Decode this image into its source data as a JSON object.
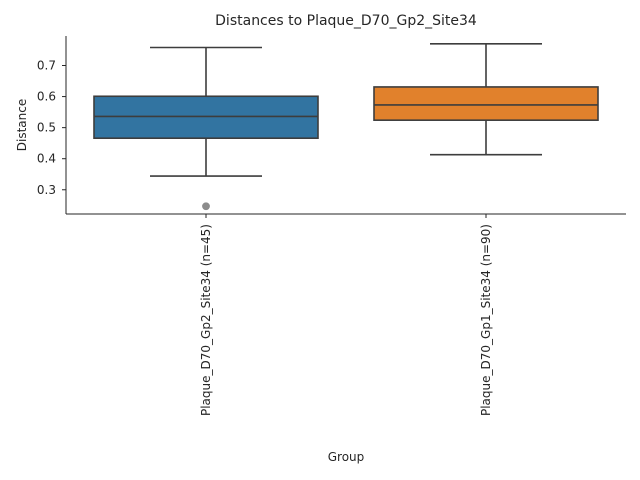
{
  "chart_data": {
    "type": "box",
    "title": "Distances to Plaque_D70_Gp2_Site34",
    "xlabel": "Group",
    "ylabel": "Distance",
    "ylim": [
      0.222,
      0.795
    ],
    "yticks": [
      0.3,
      0.4,
      0.5,
      0.6,
      0.7
    ],
    "yticklabels": [
      "0.3",
      "0.4",
      "0.5",
      "0.6",
      "0.7"
    ],
    "grid": false,
    "categories": [
      "Plaque_D70_Gp2_Site34 (n=45)",
      "Plaque_D70_Gp1_Site34 (n=90)"
    ],
    "boxes": [
      {
        "label": "Plaque_D70_Gp2_Site34 (n=45)",
        "whisker_low": 0.344,
        "q1": 0.466,
        "median": 0.536,
        "q3": 0.601,
        "whisker_high": 0.758,
        "outliers": [
          0.247
        ],
        "color": "#3274a1"
      },
      {
        "label": "Plaque_D70_Gp1_Site34 (n=90)",
        "whisker_low": 0.413,
        "q1": 0.524,
        "median": 0.573,
        "q3": 0.631,
        "whisker_high": 0.77,
        "outliers": [],
        "color": "#e1812c"
      }
    ]
  },
  "colors": {
    "line": "#3d3d3d",
    "axis": "#262626",
    "outlier": "#8c8c8c"
  }
}
